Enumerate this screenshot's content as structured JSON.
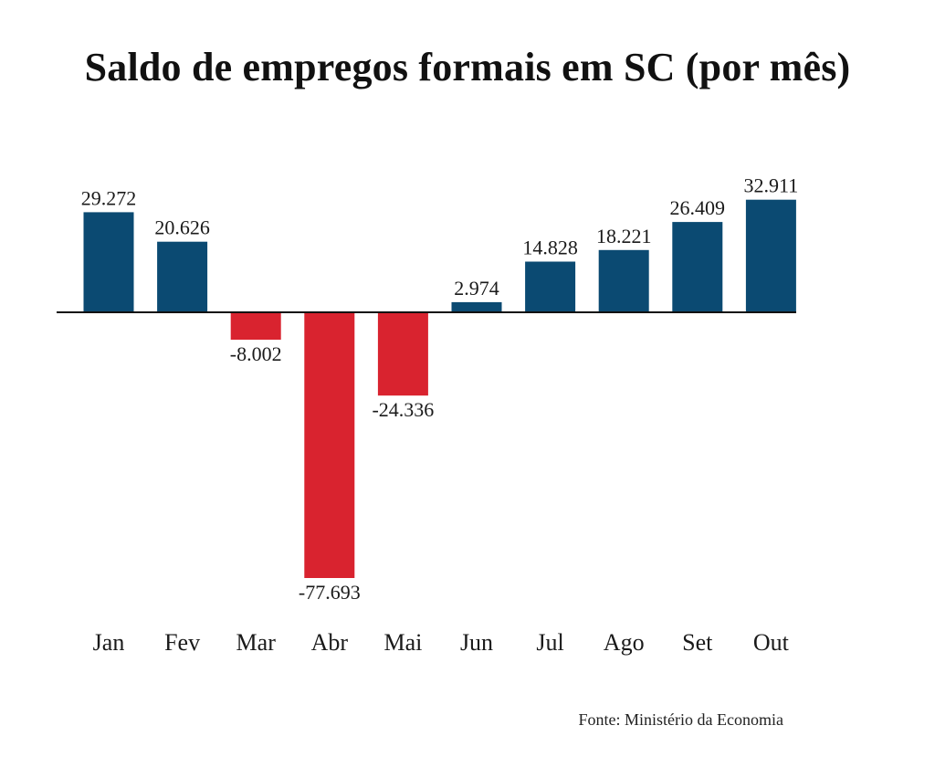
{
  "colors": {
    "positive": "#0b4a72",
    "negative": "#d9232f",
    "axis": "#111111",
    "text": "#1a1a1a"
  },
  "source": "Fonte: Ministério da Economia",
  "chart_data": {
    "type": "bar",
    "title": "Saldo de empregos formais em SC (por mês)",
    "xlabel": "",
    "ylabel": "",
    "categories": [
      "Jan",
      "Fev",
      "Mar",
      "Abr",
      "Mai",
      "Jun",
      "Jul",
      "Ago",
      "Set",
      "Out"
    ],
    "values": [
      29272,
      20626,
      -8002,
      -77693,
      -24336,
      2974,
      14828,
      18221,
      26409,
      32911
    ],
    "data_labels": [
      "29.272",
      "20.626",
      "-8.002",
      "-77.693",
      "-24.336",
      "2.974",
      "14.828",
      "18.221",
      "26.409",
      "32.911"
    ],
    "ylim": [
      -80000,
      35000
    ],
    "grid": false,
    "legend": "none"
  }
}
